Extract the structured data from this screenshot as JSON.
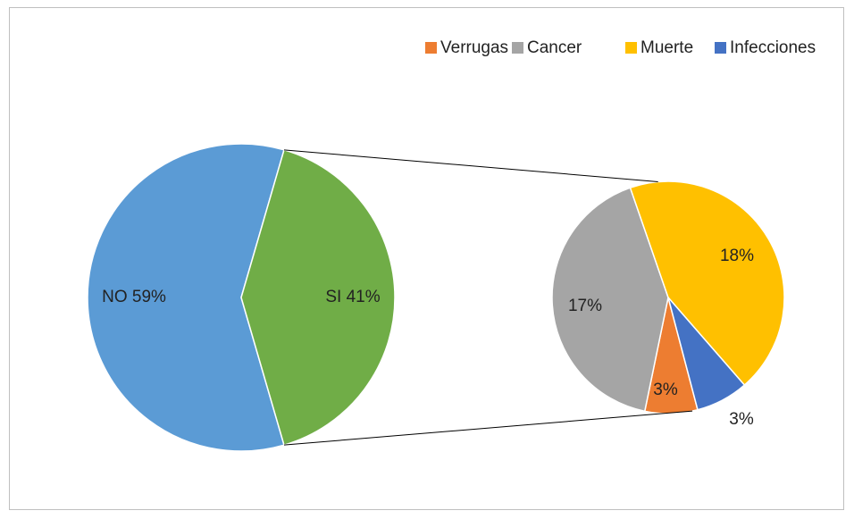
{
  "chart_data": {
    "type": "pie",
    "categories": [
      "NO",
      "SI"
    ],
    "values": [
      59,
      41
    ],
    "value_labels": [
      "NO 59%",
      "SI 41%"
    ],
    "colors": [
      "#5b9bd5",
      "#70ad47"
    ],
    "breakdown": {
      "categories": [
        "Verrugas",
        "Cancer",
        "Muerte",
        "Infecciones"
      ],
      "values": [
        3,
        17,
        18,
        3
      ],
      "value_labels": [
        "3%",
        "17%",
        "18%",
        "3%"
      ],
      "colors": [
        "#ed7d31",
        "#a5a5a5",
        "#ffc000",
        "#4472c4"
      ]
    },
    "legend": "top"
  }
}
